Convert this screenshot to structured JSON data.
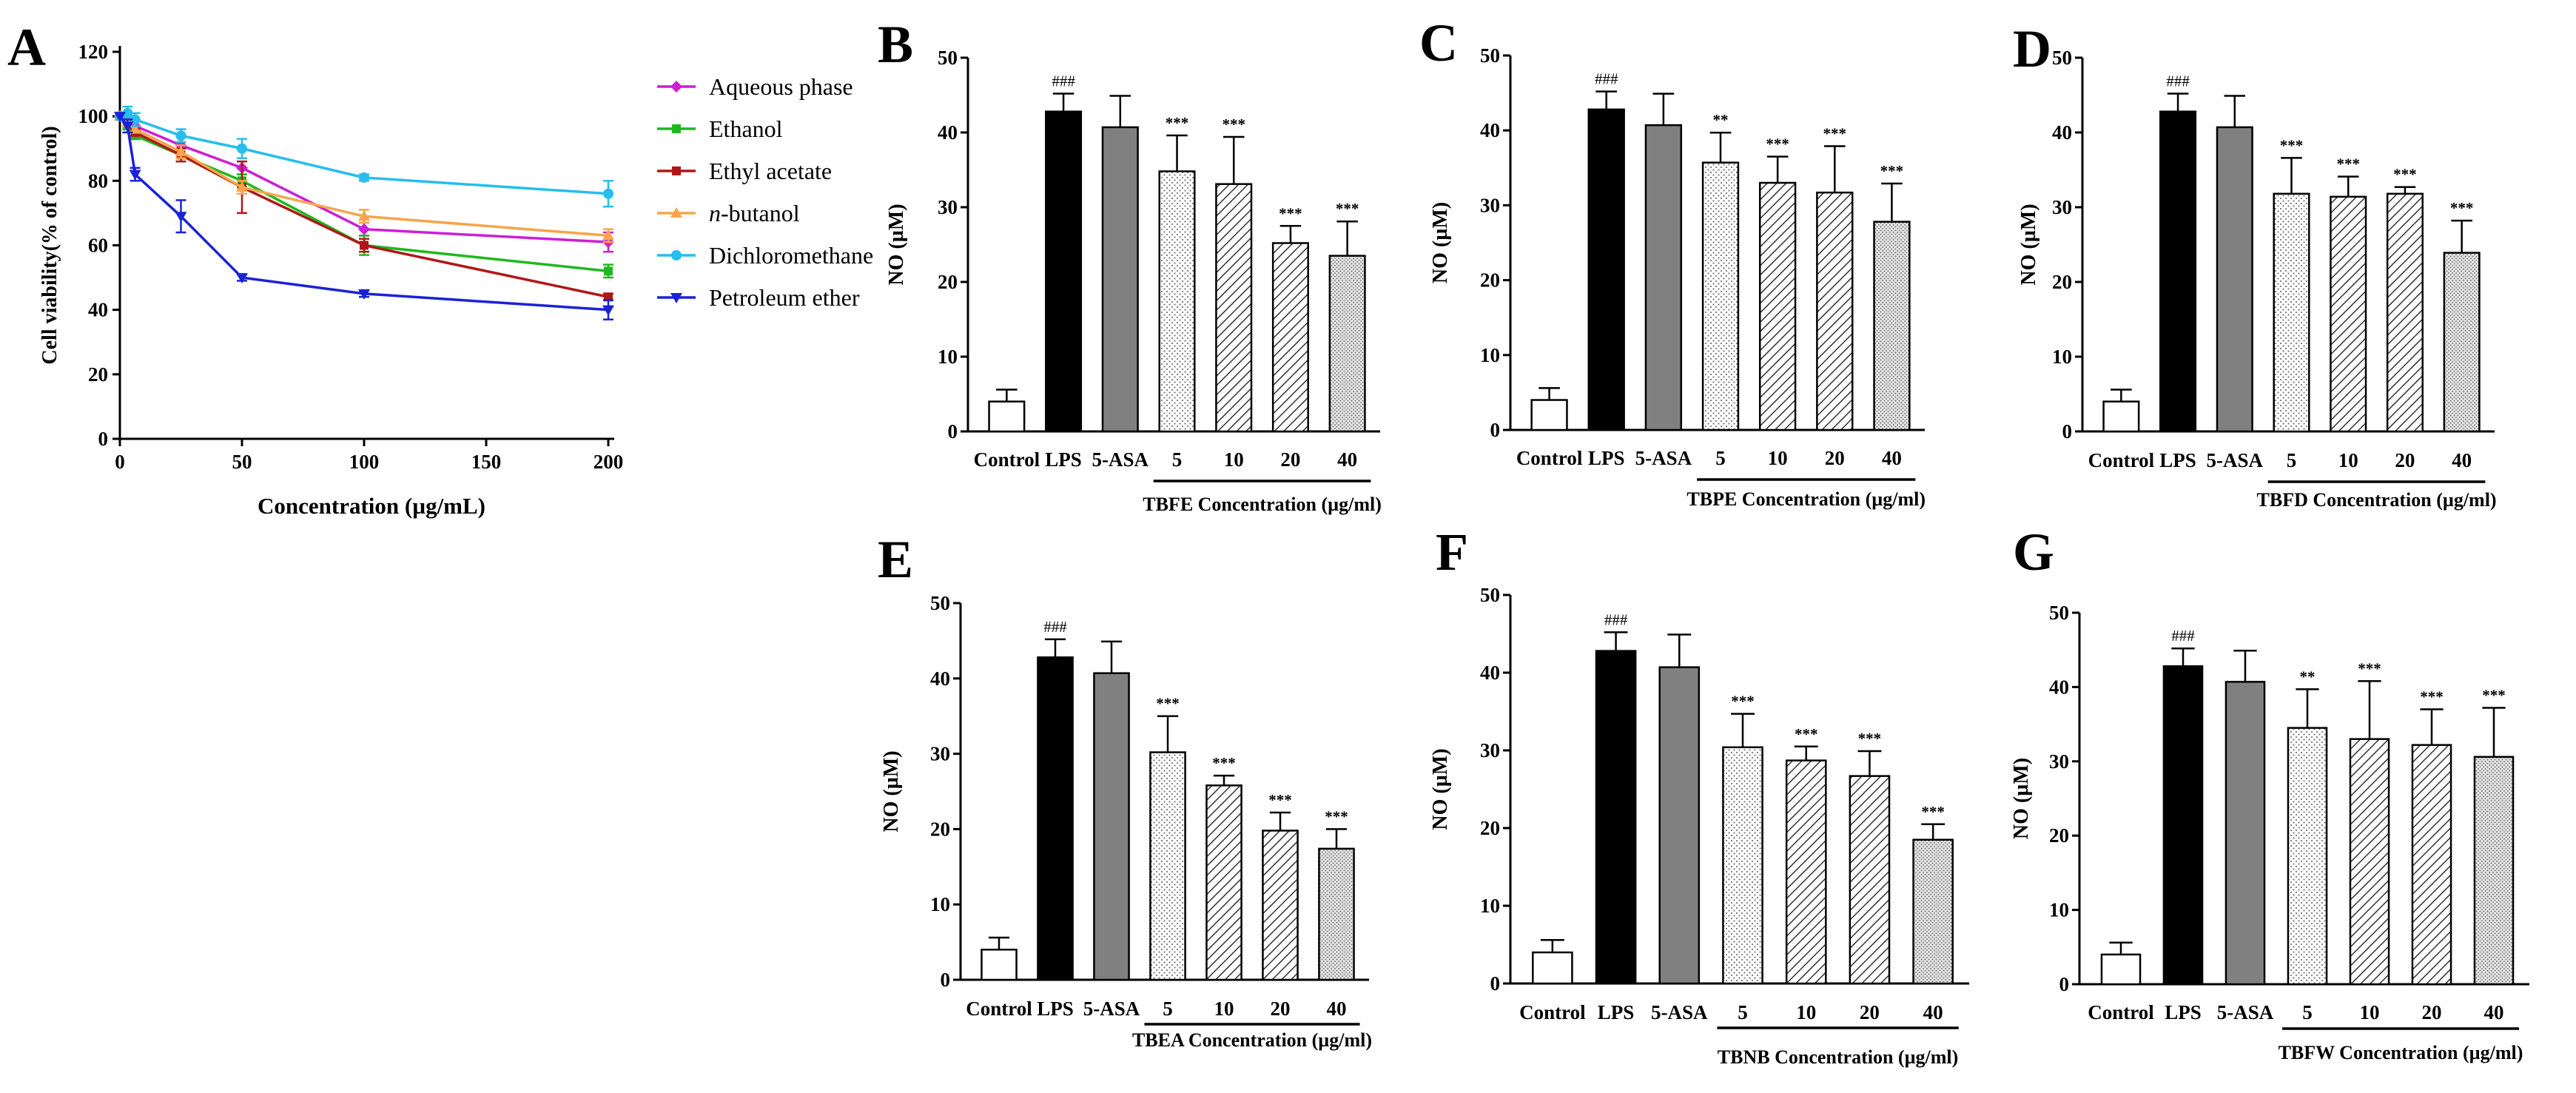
{
  "figure": {
    "note": "Multi-panel figure: (A) cell viability line chart; (B-G) nitric oxide bar charts"
  },
  "colors": {
    "Aqueous phase": "#cc1fd6",
    "Ethanol": "#1eb91e",
    "Ethyl acetate": "#b01818",
    "n-butanol": "#f6a54a",
    "Dichloromethane": "#27bdee",
    "Petroleum ether": "#1a22d8"
  },
  "chart_data": [
    {
      "panel": "A",
      "type": "line",
      "xlabel": "Concentration (µg/mL)",
      "ylabel": "Cell viability(% of control)",
      "xlim": [
        0,
        200
      ],
      "ylim": [
        0,
        120
      ],
      "xticks": [
        0,
        50,
        100,
        150,
        200
      ],
      "yticks": [
        0,
        20,
        40,
        60,
        80,
        100,
        120
      ],
      "legend_position": "right",
      "x": [
        0,
        3.125,
        6.25,
        25,
        50,
        100,
        200
      ],
      "series": [
        {
          "name": "Aqueous phase",
          "values": [
            100,
            99,
            97,
            91,
            84,
            65,
            61
          ],
          "errors": [
            0,
            1,
            2,
            3,
            2,
            2,
            3
          ]
        },
        {
          "name": "Ethanol",
          "values": [
            100,
            97,
            94,
            88,
            80,
            60,
            52
          ],
          "errors": [
            0,
            1,
            1,
            2,
            2,
            3,
            2
          ]
        },
        {
          "name": "Ethyl acetate",
          "values": [
            100,
            98,
            95,
            88,
            78,
            60,
            44
          ],
          "errors": [
            0,
            1,
            1,
            2,
            8,
            2,
            1
          ]
        },
        {
          "name": "n-butanol",
          "values": [
            100,
            98,
            96,
            89,
            78,
            69,
            63
          ],
          "errors": [
            0,
            1,
            1,
            2,
            2,
            2,
            2
          ]
        },
        {
          "name": "Dichloromethane",
          "values": [
            100,
            101,
            99,
            94,
            90,
            81,
            76
          ],
          "errors": [
            0,
            2,
            2,
            2,
            3,
            1,
            4
          ]
        },
        {
          "name": "Petroleum ether",
          "values": [
            100,
            97,
            82,
            69,
            50,
            45,
            40
          ],
          "errors": [
            0,
            2,
            2,
            5,
            1,
            1,
            3
          ]
        }
      ]
    },
    {
      "panel": "B",
      "type": "bar",
      "ylabel": "NO (µM)",
      "ylim": [
        0,
        50
      ],
      "yticks": [
        0,
        10,
        20,
        30,
        40,
        50
      ],
      "categories": [
        "Control",
        "LPS",
        "5-ASA",
        "5",
        "10",
        "20",
        "40"
      ],
      "values": [
        4.0,
        42.8,
        40.7,
        34.8,
        33.1,
        25.2,
        23.5
      ],
      "errors": [
        1.6,
        2.4,
        4.2,
        4.8,
        6.3,
        2.3,
        4.6
      ],
      "significance": [
        "",
        "###",
        "",
        "***",
        "***",
        "***",
        "***"
      ],
      "group_label": "TBFE Concentration (µg/ml)"
    },
    {
      "panel": "C",
      "type": "bar",
      "ylabel": "NO (µM)",
      "ylim": [
        0,
        50
      ],
      "yticks": [
        0,
        10,
        20,
        30,
        40,
        50
      ],
      "categories": [
        "Control",
        "LPS",
        "5-ASA",
        "5",
        "10",
        "20",
        "40"
      ],
      "values": [
        4.0,
        42.8,
        40.7,
        35.7,
        33.0,
        31.7,
        27.8
      ],
      "errors": [
        1.6,
        2.4,
        4.2,
        4.0,
        3.5,
        6.2,
        5.1
      ],
      "significance": [
        "",
        "###",
        "",
        "**",
        "***",
        "***",
        "***"
      ],
      "group_label": "TBPE Concentration (µg/ml)"
    },
    {
      "panel": "D",
      "type": "bar",
      "ylabel": "NO (µM)",
      "ylim": [
        0,
        50
      ],
      "yticks": [
        0,
        10,
        20,
        30,
        40,
        50
      ],
      "categories": [
        "Control",
        "LPS",
        "5-ASA",
        "5",
        "10",
        "20",
        "40"
      ],
      "values": [
        4.0,
        42.8,
        40.7,
        31.8,
        31.4,
        31.8,
        23.9
      ],
      "errors": [
        1.6,
        2.4,
        4.2,
        4.8,
        2.7,
        0.9,
        4.3
      ],
      "significance": [
        "",
        "###",
        "",
        "***",
        "***",
        "***",
        "***"
      ],
      "group_label": "TBFD Concentration (µg/ml)"
    },
    {
      "panel": "E",
      "type": "bar",
      "ylabel": "NO (µM)",
      "ylim": [
        0,
        50
      ],
      "yticks": [
        0,
        10,
        20,
        30,
        40,
        50
      ],
      "categories": [
        "Control",
        "LPS",
        "5-ASA",
        "5",
        "10",
        "20",
        "40"
      ],
      "values": [
        4.0,
        42.8,
        40.7,
        30.2,
        25.8,
        19.8,
        17.4
      ],
      "errors": [
        1.6,
        2.4,
        4.2,
        4.8,
        1.3,
        2.4,
        2.6
      ],
      "significance": [
        "",
        "###",
        "",
        "***",
        "***",
        "***",
        "***"
      ],
      "group_label": "TBEA Concentration (µg/ml)"
    },
    {
      "panel": "F",
      "type": "bar",
      "ylabel": "NO (µM)",
      "ylim": [
        0,
        50
      ],
      "yticks": [
        0,
        10,
        20,
        30,
        40,
        50
      ],
      "categories": [
        "Control",
        "LPS",
        "5-ASA",
        "5",
        "10",
        "20",
        "40"
      ],
      "values": [
        4.0,
        42.8,
        40.7,
        30.4,
        28.7,
        26.7,
        18.5
      ],
      "errors": [
        1.6,
        2.4,
        4.2,
        4.3,
        1.8,
        3.2,
        2.0
      ],
      "significance": [
        "",
        "###",
        "",
        "***",
        "***",
        "***",
        "***"
      ],
      "group_label": "TBNB Concentration (µg/ml)"
    },
    {
      "panel": "G",
      "type": "bar",
      "ylabel": "NO (µM)",
      "ylim": [
        0,
        50
      ],
      "yticks": [
        0,
        10,
        20,
        30,
        40,
        50
      ],
      "categories": [
        "Control",
        "LPS",
        "5-ASA",
        "5",
        "10",
        "20",
        "40"
      ],
      "values": [
        4.0,
        42.8,
        40.7,
        34.5,
        33.0,
        32.2,
        30.6
      ],
      "errors": [
        1.6,
        2.4,
        4.2,
        5.2,
        7.8,
        4.8,
        6.6
      ],
      "significance": [
        "",
        "###",
        "",
        "**",
        "***",
        "***",
        "***"
      ],
      "group_label": "TBFW Concentration (µg/ml)"
    }
  ]
}
